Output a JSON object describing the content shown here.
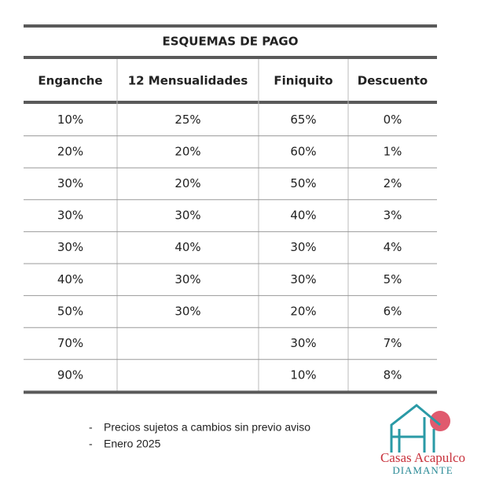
{
  "table": {
    "title": "ESQUEMAS DE PAGO",
    "header": [
      "Enganche",
      "12 Mensualidades",
      "Finiquito",
      "Descuento"
    ],
    "rows": [
      [
        "10%",
        "25%",
        "65%",
        "0%"
      ],
      [
        "20%",
        "20%",
        "60%",
        "1%"
      ],
      [
        "30%",
        "20%",
        "50%",
        "2%"
      ],
      [
        "30%",
        "30%",
        "40%",
        "3%"
      ],
      [
        "30%",
        "40%",
        "30%",
        "4%"
      ],
      [
        "40%",
        "30%",
        "30%",
        "5%"
      ],
      [
        "50%",
        "30%",
        "20%",
        "6%"
      ],
      [
        "70%",
        null,
        "30%",
        "7%"
      ],
      [
        "90%",
        null,
        "10%",
        "8%"
      ]
    ]
  },
  "notes": [
    "Precios sujetos a cambios sin previo aviso",
    "Enero 2025"
  ],
  "logo": {
    "line1": "Casas Acapulco",
    "line2": "Diamante"
  }
}
